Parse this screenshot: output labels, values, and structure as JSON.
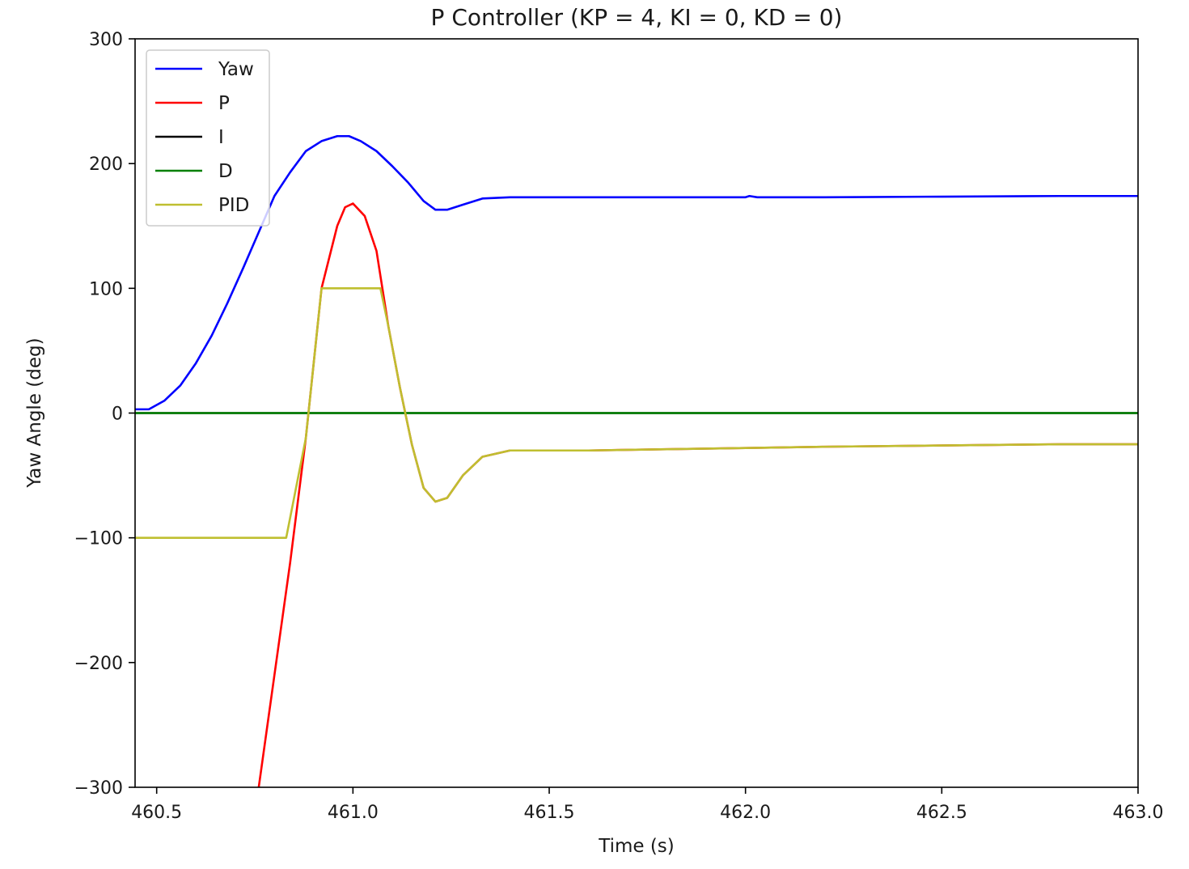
{
  "chart_data": {
    "type": "line",
    "title": "P Controller (KP = 4, KI = 0, KD = 0)",
    "xlabel": "Time (s)",
    "ylabel": "Yaw Angle (deg)",
    "xlim": [
      460.445,
      463.0
    ],
    "ylim": [
      -300,
      300
    ],
    "x_ticks": [
      460.5,
      461.0,
      461.5,
      462.0,
      462.5,
      463.0
    ],
    "x_tick_labels": [
      "460.5",
      "461.0",
      "461.5",
      "462.0",
      "462.5",
      "463.0"
    ],
    "y_ticks": [
      -300,
      -200,
      -100,
      0,
      100,
      200,
      300
    ],
    "y_tick_labels": [
      "−300",
      "−200",
      "−100",
      "0",
      "100",
      "200",
      "300"
    ],
    "grid": false,
    "legend_position": "upper-left",
    "series": [
      {
        "name": "Yaw",
        "color": "#0000ff",
        "x": [
          460.445,
          460.48,
          460.52,
          460.56,
          460.6,
          460.64,
          460.68,
          460.72,
          460.76,
          460.8,
          460.84,
          460.88,
          460.92,
          460.96,
          460.99,
          461.02,
          461.06,
          461.1,
          461.14,
          461.18,
          461.21,
          461.24,
          461.28,
          461.33,
          461.4,
          461.6,
          461.8,
          462.0,
          462.01,
          462.03,
          462.2,
          462.5,
          462.8,
          463.0
        ],
        "y": [
          3,
          3,
          10,
          22,
          40,
          62,
          88,
          116,
          145,
          174,
          193,
          210,
          218,
          222,
          222,
          218,
          210,
          198,
          185,
          170,
          163,
          163,
          167,
          172,
          173,
          173,
          173,
          173,
          174,
          173,
          173,
          173.5,
          174,
          174
        ]
      },
      {
        "name": "P",
        "color": "#ff0000",
        "x": [
          460.76,
          460.8,
          460.84,
          460.88,
          460.92,
          460.96,
          460.98,
          461.0,
          461.03,
          461.06,
          461.09,
          461.12,
          461.15,
          461.18,
          461.21,
          461.24,
          461.28,
          461.33,
          461.4,
          461.6,
          461.8,
          462.0,
          462.2,
          462.5,
          462.8,
          463.0
        ],
        "y": [
          -300,
          -210,
          -120,
          -20,
          100,
          150,
          165,
          168,
          158,
          130,
          70,
          20,
          -25,
          -60,
          -71,
          -68,
          -50,
          -35,
          -30,
          -30,
          -29,
          -28,
          -27,
          -26,
          -25,
          -25
        ]
      },
      {
        "name": "I",
        "color": "#000000",
        "x": [
          460.445,
          463.0
        ],
        "y": [
          0,
          0
        ]
      },
      {
        "name": "D",
        "color": "#008000",
        "x": [
          460.445,
          463.0
        ],
        "y": [
          0,
          0
        ]
      },
      {
        "name": "PID",
        "color": "#bfbf30",
        "x": [
          460.445,
          460.83,
          460.88,
          460.92,
          460.96,
          461.0,
          461.07,
          461.09,
          461.12,
          461.15,
          461.18,
          461.21,
          461.24,
          461.28,
          461.33,
          461.4,
          461.6,
          461.8,
          462.0,
          462.2,
          462.5,
          462.8,
          463.0
        ],
        "y": [
          -100,
          -100,
          -20,
          100,
          100,
          100,
          100,
          70,
          20,
          -25,
          -60,
          -71,
          -68,
          -50,
          -35,
          -30,
          -30,
          -29,
          -28,
          -27,
          -26,
          -25,
          -25
        ]
      }
    ]
  }
}
